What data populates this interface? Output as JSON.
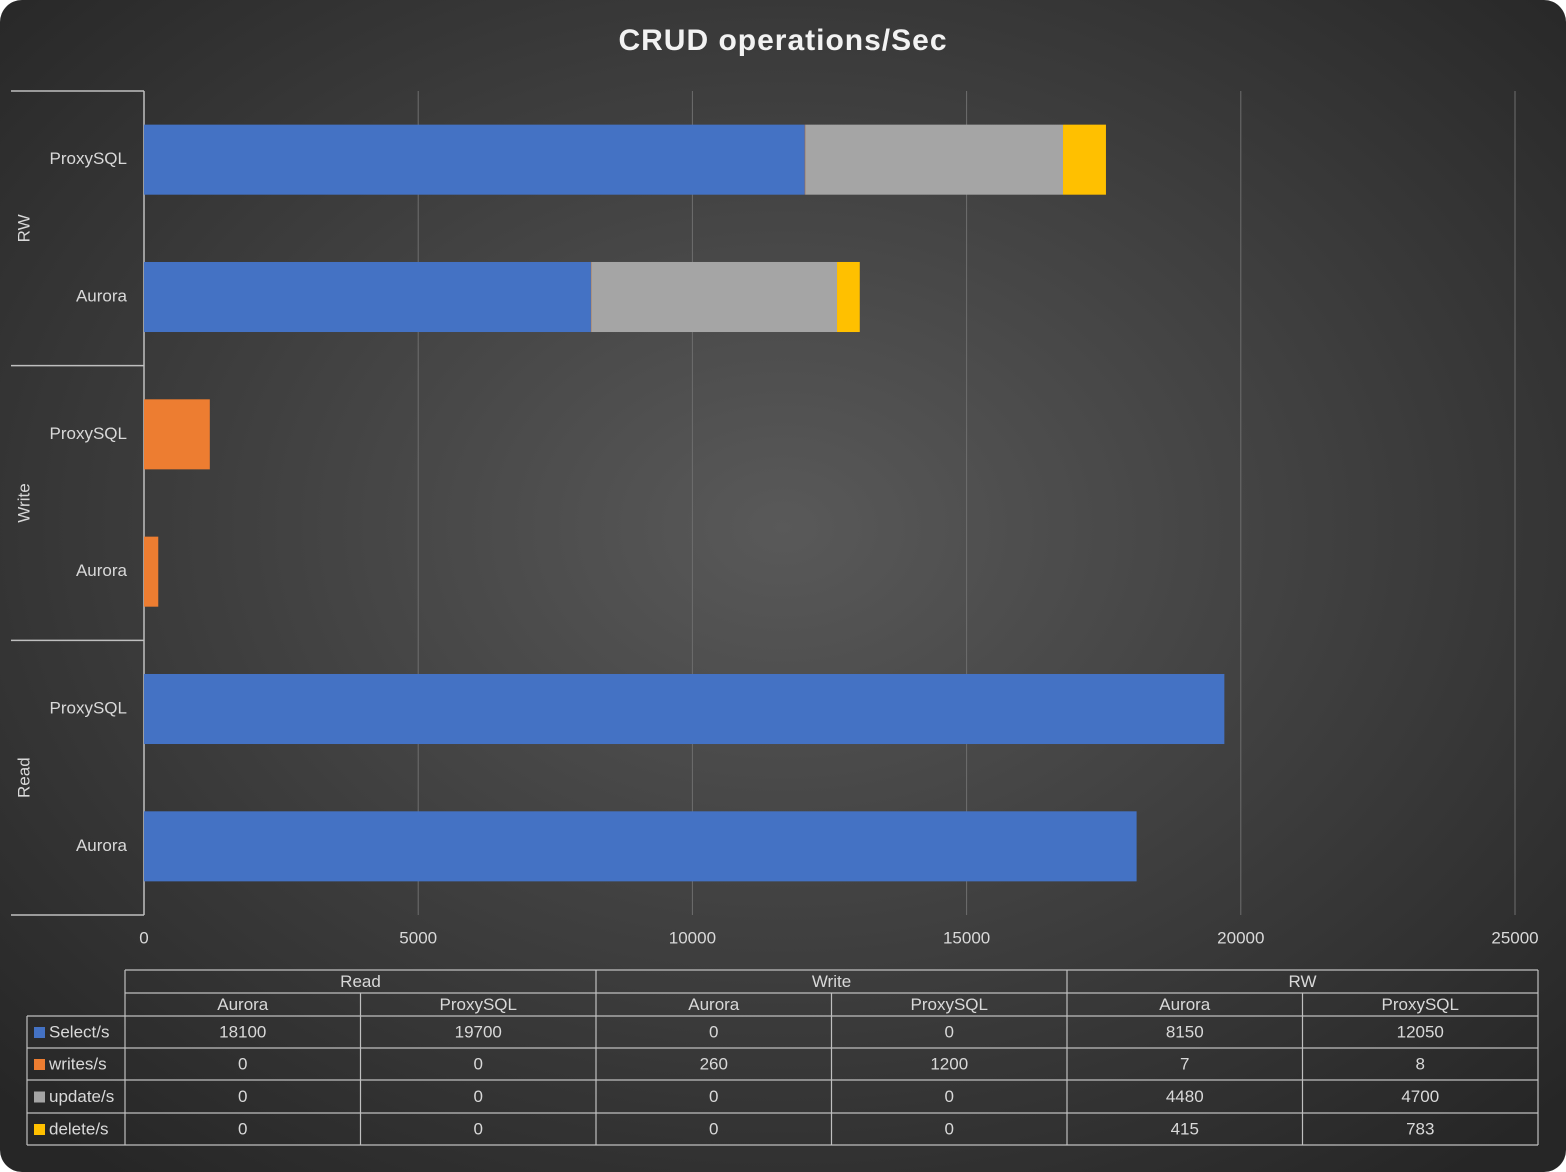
{
  "chart_data": {
    "type": "stacked-barh",
    "title": "CRUD operations/Sec",
    "groups": [
      "Read",
      "Write",
      "RW"
    ],
    "categories": [
      "Aurora",
      "ProxySQL",
      "Aurora",
      "ProxySQL",
      "Aurora",
      "ProxySQL"
    ],
    "series": [
      {
        "name": "Select/s",
        "color": "#4472c4",
        "values": [
          18100,
          19700,
          0,
          0,
          8150,
          12050
        ]
      },
      {
        "name": "writes/s",
        "color": "#ed7d31",
        "values": [
          0,
          0,
          260,
          1200,
          7,
          8
        ]
      },
      {
        "name": "update/s",
        "color": "#a5a5a5",
        "values": [
          0,
          0,
          0,
          0,
          4480,
          4700
        ]
      },
      {
        "name": "delete/s",
        "color": "#ffc000",
        "values": [
          0,
          0,
          0,
          0,
          415,
          783
        ]
      }
    ],
    "xlim": [
      0,
      25000
    ],
    "xticks": [
      0,
      5000,
      10000,
      15000,
      20000,
      25000
    ],
    "grid": true,
    "data_table": true
  }
}
